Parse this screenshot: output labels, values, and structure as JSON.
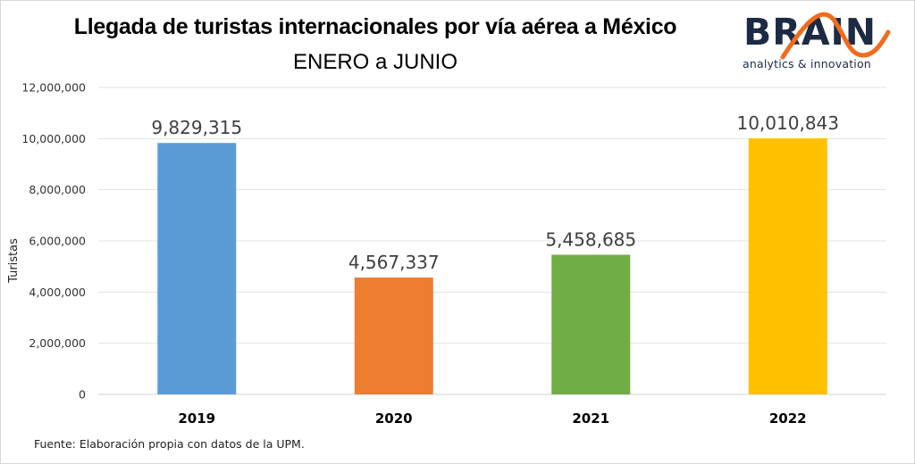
{
  "header": {
    "title": "Llegada de turistas internacionales por vía aérea a México",
    "subtitle": "ENERO a JUNIO"
  },
  "logo": {
    "word": "BRAIN",
    "tagline": "analytics & innovation",
    "colors": {
      "text": "#1c2a44",
      "wave": "#f26b1d"
    }
  },
  "chart_data": {
    "type": "bar",
    "title": "Llegada de turistas internacionales por vía aérea a México",
    "subtitle": "ENERO a JUNIO",
    "xlabel": "",
    "ylabel": "Turistas",
    "categories": [
      "2019",
      "2020",
      "2021",
      "2022"
    ],
    "values": [
      9829315,
      4567337,
      5458685,
      10010843
    ],
    "value_labels": [
      "9,829,315",
      "4,567,337",
      "5,458,685",
      "10,010,843"
    ],
    "colors": [
      "#5b9bd5",
      "#ed7d31",
      "#70ad47",
      "#ffc000"
    ],
    "ylim": [
      0,
      12000000
    ],
    "yticks": [
      0,
      2000000,
      4000000,
      6000000,
      8000000,
      10000000,
      12000000
    ],
    "ytick_labels": [
      "0",
      "2,000,000",
      "4,000,000",
      "6,000,000",
      "8,000,000",
      "10,000,000",
      "12,000,000"
    ],
    "grid": true,
    "legend": "none"
  },
  "footer": {
    "source": "Fuente: Elaboración propia con datos de la UPM."
  }
}
